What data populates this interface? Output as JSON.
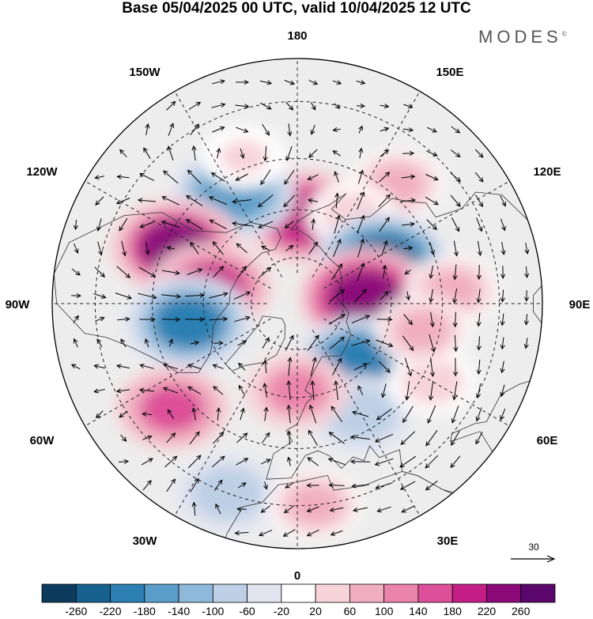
{
  "title": "Base 05/04/2025 00 UTC, valid 10/04/2025 12 UTC",
  "brand": "MODES",
  "brand_mark": "©",
  "projection": "north-polar-stereographic",
  "longitude_labels": {
    "top": "180",
    "top_left": "150W",
    "top_right": "150E",
    "upper_left": "120W",
    "upper_right": "120E",
    "left": "90W",
    "right": "90E",
    "lower_left": "60W",
    "lower_right": "60E",
    "bottom_left": "30W",
    "bottom_right": "30E",
    "bottom": "0"
  },
  "reference_vector": {
    "label": "30",
    "icon": "arrow-right-icon"
  },
  "colorbar": {
    "ticks": [
      "-260",
      "-220",
      "-180",
      "-140",
      "-100",
      "-60",
      "-20",
      "20",
      "60",
      "100",
      "140",
      "180",
      "220",
      "260"
    ],
    "colors": [
      "#0d3b5e",
      "#17618f",
      "#2b7fb3",
      "#5a9dc8",
      "#8fb9da",
      "#bdd0e6",
      "#e2e4f0",
      "#ffffff",
      "#f7d3da",
      "#f1aec0",
      "#ea84aa",
      "#dd4f98",
      "#c41e86",
      "#8c0a7a",
      "#5a066b"
    ]
  },
  "anomaly_cells": [
    {
      "lon": 175,
      "lat": 62,
      "value": 200
    },
    {
      "lon": 140,
      "lat": 42,
      "value": 60
    },
    {
      "lon": 148,
      "lat": 57,
      "value": 40
    },
    {
      "lon": -150,
      "lat": 50,
      "value": -180
    },
    {
      "lon": -160,
      "lat": 42,
      "value": 20
    },
    {
      "lon": -115,
      "lat": 48,
      "value": 220
    },
    {
      "lon": -100,
      "lat": 62,
      "value": 180
    },
    {
      "lon": 115,
      "lat": 60,
      "value": -240
    },
    {
      "lon": 95,
      "lat": 68,
      "value": 230
    },
    {
      "lon": 95,
      "lat": 42,
      "value": 60
    },
    {
      "lon": -80,
      "lat": 55,
      "value": -200
    },
    {
      "lon": 45,
      "lat": 62,
      "value": -220
    },
    {
      "lon": 30,
      "lat": 50,
      "value": -100
    },
    {
      "lon": 0,
      "lat": 62,
      "value": 100
    },
    {
      "lon": -50,
      "lat": 40,
      "value": 140
    },
    {
      "lon": -20,
      "lat": 30,
      "value": -100
    },
    {
      "lon": 5,
      "lat": 30,
      "value": 60
    },
    {
      "lon": 60,
      "lat": 42,
      "value": 40
    },
    {
      "lon": 78,
      "lat": 50,
      "value": 60
    }
  ]
}
